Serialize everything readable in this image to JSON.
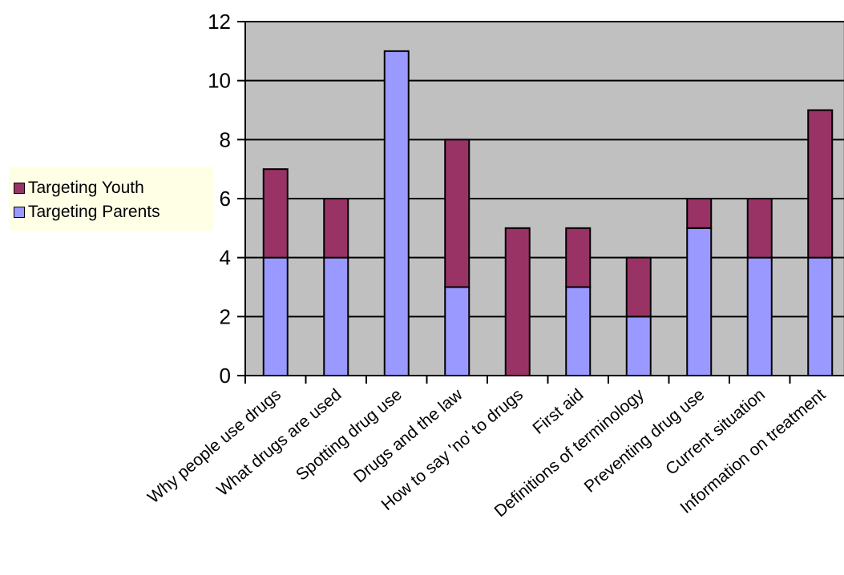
{
  "chart_data": {
    "type": "bar",
    "stacked": true,
    "categories": [
      "Why people use drugs",
      "What drugs are used",
      "Spotting drug use",
      "Drugs and the law",
      "How to say 'no' to drugs",
      "First aid",
      "Definitions of terminology",
      "Preventing drug use",
      "Current situation",
      "Information on treatment"
    ],
    "series": [
      {
        "name": "Targeting Parents",
        "color": "#9999ff",
        "values": [
          4,
          4,
          11,
          3,
          0,
          3,
          2,
          5,
          4,
          4
        ]
      },
      {
        "name": "Targeting Youth",
        "color": "#993366",
        "values": [
          3,
          2,
          0,
          5,
          5,
          2,
          2,
          1,
          2,
          5
        ]
      }
    ],
    "ylim": [
      0,
      12
    ],
    "yticks": [
      "0",
      "2",
      "4",
      "6",
      "8",
      "10",
      "12"
    ],
    "grid": true,
    "plot_background": "#c0c0c0",
    "legend_position": "left",
    "legend_background": "#ffffe6"
  }
}
